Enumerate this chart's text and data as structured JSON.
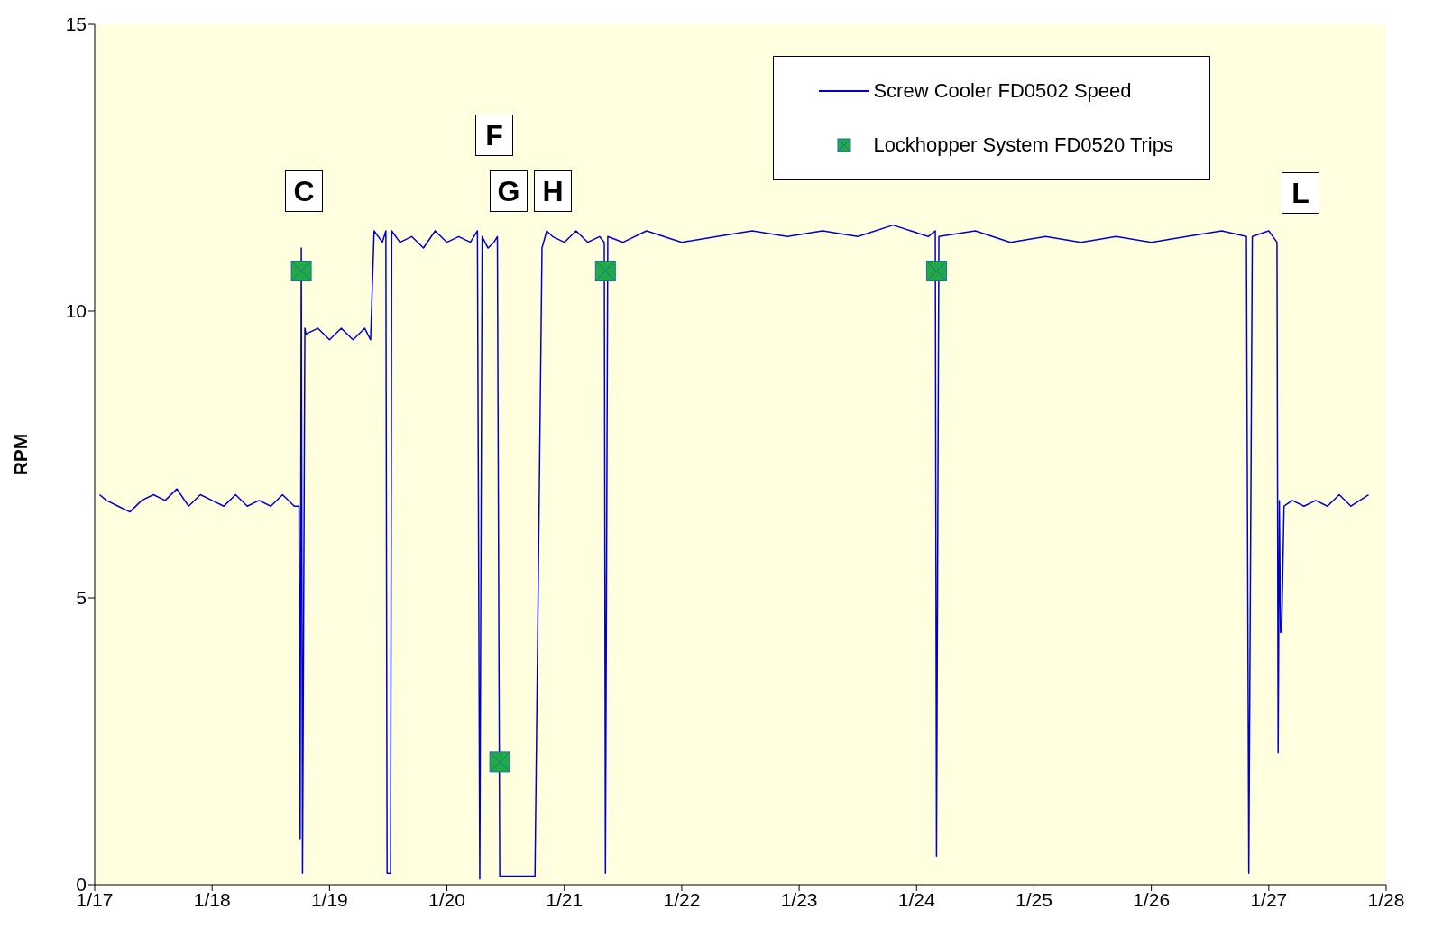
{
  "chart_data": {
    "type": "line",
    "ylabel": "RPM",
    "xlim": [
      "--01-17",
      "--01-28"
    ],
    "xticks": [
      {
        "value": "--01-17",
        "label": "1/17"
      },
      {
        "value": "--01-18",
        "label": "1/18"
      },
      {
        "value": "--01-19",
        "label": "1/19"
      },
      {
        "value": "--01-20",
        "label": "1/20"
      },
      {
        "value": "--01-21",
        "label": "1/21"
      },
      {
        "value": "--01-22",
        "label": "1/22"
      },
      {
        "value": "--01-23",
        "label": "1/23"
      },
      {
        "value": "--01-24",
        "label": "1/24"
      },
      {
        "value": "--01-25",
        "label": "1/25"
      },
      {
        "value": "--01-26",
        "label": "1/26"
      },
      {
        "value": "--01-27",
        "label": "1/27"
      },
      {
        "value": "--01-28",
        "label": "1/28"
      }
    ],
    "ylim": [
      0,
      15
    ],
    "yticks": [
      0,
      5,
      10,
      15
    ],
    "grid": false,
    "legend": "top right",
    "series": [
      {
        "name": "Screw Cooler FD0502 Speed",
        "type": "line",
        "color": "#0000cc",
        "marker": "none",
        "line_style": "solid",
        "x": [
          "--01-17T01:00",
          "--01-17T02:24",
          "--01-17T04:48",
          "--01-17T07:12",
          "--01-17T09:36",
          "--01-17T12:00",
          "--01-17T14:24",
          "--01-17T16:48",
          "--01-17T19:12",
          "--01-17T21:36",
          "--01-18T00:00",
          "--01-18T02:24",
          "--01-18T04:48",
          "--01-18T07:12",
          "--01-18T09:36",
          "--01-18T12:00",
          "--01-18T14:24",
          "--01-18T16:48",
          "--01-18T17:46",
          "--01-18T18:00",
          "--01-18T18:14",
          "--01-18T18:29",
          "--01-18T18:58",
          "--01-18T19:12",
          "--01-18T21:36",
          "--01-19T00:00",
          "--01-19T02:24",
          "--01-19T04:48",
          "--01-19T07:12",
          "--01-19T08:24",
          "--01-19T09:07",
          "--01-19T10:48",
          "--01-19T11:31",
          "--01-19T11:46",
          "--01-19T12:29",
          "--01-19T12:43",
          "--01-19T14:24",
          "--01-19T16:48",
          "--01-19T19:12",
          "--01-19T21:36",
          "--01-20T00:00",
          "--01-20T02:24",
          "--01-20T04:48",
          "--01-20T06:14",
          "--01-20T06:43",
          "--01-20T07:12",
          "--01-20T08:24",
          "--01-20T09:36",
          "--01-20T10:19",
          "--01-20T10:48",
          "--01-20T12:00",
          "--01-20T18:00",
          "--01-20T19:26",
          "--01-20T20:24",
          "--01-20T21:36",
          "--01-21T00:00",
          "--01-21T02:24",
          "--01-21T04:48",
          "--01-21T07:12",
          "--01-21T08:10",
          "--01-21T08:24",
          "--01-21T08:53",
          "--01-21T12:00",
          "--01-21T16:48",
          "--01-22T00:00",
          "--01-22T07:12",
          "--01-22T14:24",
          "--01-22T21:36",
          "--01-23T04:48",
          "--01-23T12:00",
          "--01-23T19:12",
          "--01-24T02:24",
          "--01-24T03:50",
          "--01-24T04:05",
          "--01-24T04:34",
          "--01-24T12:00",
          "--01-24T19:12",
          "--01-25T02:24",
          "--01-25T09:36",
          "--01-25T16:48",
          "--01-26T00:00",
          "--01-26T07:12",
          "--01-26T14:24",
          "--01-26T19:26",
          "--01-26T19:55",
          "--01-26T20:38",
          "--01-27T00:00",
          "--01-27T01:41",
          "--01-27T01:55",
          "--01-27T02:10",
          "--01-27T02:24",
          "--01-27T02:38",
          "--01-27T03:07",
          "--01-27T04:48",
          "--01-27T07:12",
          "--01-27T09:36",
          "--01-27T12:00",
          "--01-27T14:24",
          "--01-27T16:48",
          "--01-27T20:24"
        ],
        "values": [
          6.8,
          6.7,
          6.6,
          6.5,
          6.7,
          6.8,
          6.7,
          6.9,
          6.6,
          6.8,
          6.7,
          6.6,
          6.8,
          6.6,
          6.7,
          6.6,
          6.8,
          6.6,
          6.6,
          0.8,
          11.1,
          0.2,
          9.7,
          9.6,
          9.7,
          9.5,
          9.7,
          9.5,
          9.7,
          9.5,
          11.4,
          11.2,
          11.4,
          0.2,
          0.2,
          11.4,
          11.2,
          11.3,
          11.1,
          11.4,
          11.2,
          11.3,
          11.2,
          11.4,
          0.1,
          11.3,
          11.1,
          11.2,
          11.3,
          0.15,
          0.15,
          0.15,
          11.1,
          11.4,
          11.3,
          11.2,
          11.4,
          11.2,
          11.3,
          11.2,
          0.2,
          11.3,
          11.2,
          11.4,
          11.2,
          11.3,
          11.4,
          11.3,
          11.4,
          11.3,
          11.5,
          11.3,
          11.4,
          0.5,
          11.3,
          11.4,
          11.2,
          11.3,
          11.2,
          11.3,
          11.2,
          11.3,
          11.4,
          11.3,
          0.2,
          11.3,
          11.4,
          11.2,
          2.3,
          6.7,
          4.4,
          4.4,
          6.6,
          6.7,
          6.6,
          6.7,
          6.6,
          6.8,
          6.6,
          6.8
        ]
      },
      {
        "name": "Lockhopper System FD0520 Trips",
        "type": "scatter",
        "color": "#22aa44",
        "marker": "square",
        "x": [
          "--01-18T18:14",
          "--01-20T10:48",
          "--01-21T08:24",
          "--01-24T04:05"
        ],
        "values": [
          10.7,
          2.14,
          10.7,
          10.7
        ]
      }
    ],
    "annotations": [
      "C",
      "F",
      "G",
      "H",
      "L"
    ]
  }
}
